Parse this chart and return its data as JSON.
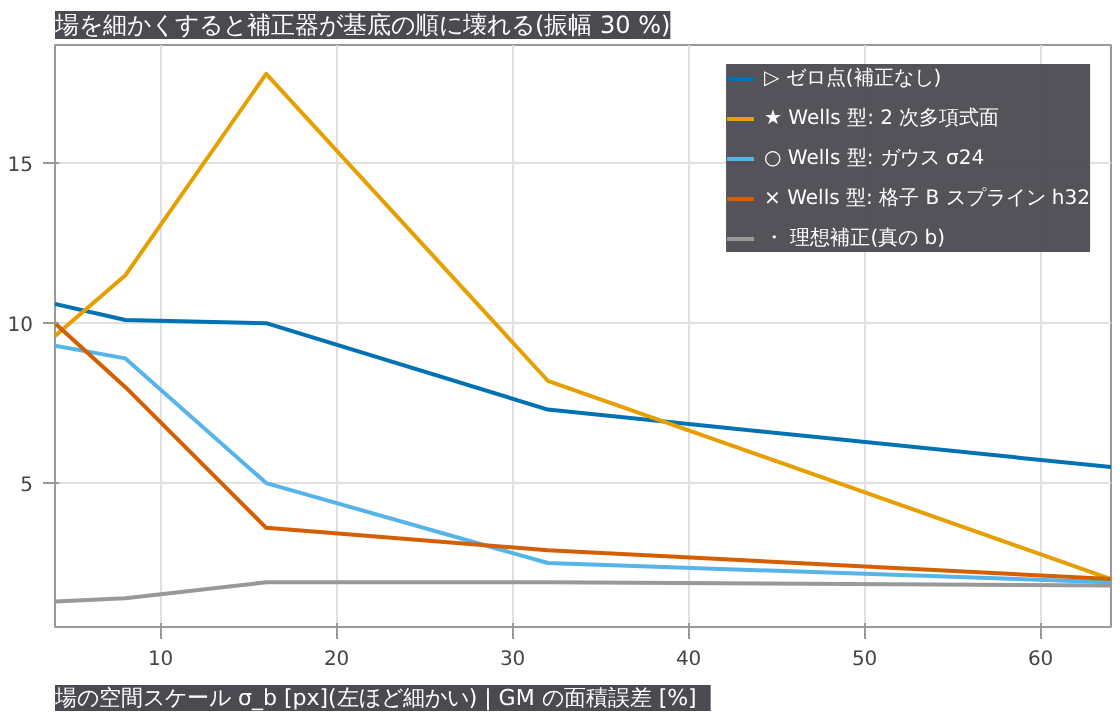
{
  "chart_data": {
    "type": "line",
    "title": "場を細かくすると補正器が基底の順に壊れる(振幅 30 %)",
    "xlabel": "場の空間スケール σ_b [px](左ほど細かい)  |  GM の面積誤差 [%]",
    "x": [
      4,
      8,
      16,
      32,
      64
    ],
    "series": [
      {
        "name": "▷ ゼロ点(補正なし)",
        "color": "#0072b2",
        "values": [
          10.6,
          10.1,
          10.0,
          7.3,
          5.5
        ]
      },
      {
        "name": "★ Wells 型: 2 次多項式面",
        "color": "#e69f00",
        "values": [
          9.6,
          11.5,
          17.8,
          8.2,
          2.0
        ]
      },
      {
        "name": "○ Wells 型: ガウス σ24",
        "color": "#56b4e9",
        "values": [
          9.3,
          8.9,
          5.0,
          2.5,
          1.9
        ]
      },
      {
        "name": "× Wells 型: 格子 B スプライン h32",
        "color": "#d55e00",
        "values": [
          10.0,
          8.0,
          3.6,
          2.9,
          2.0
        ]
      },
      {
        "name": "・ 理想補正(真の b)",
        "color": "#999999",
        "values": [
          1.3,
          1.4,
          1.9,
          1.9,
          1.8
        ]
      }
    ],
    "xlim": [
      4,
      64
    ],
    "xticks": [
      10,
      20,
      30,
      40,
      50,
      60
    ],
    "ylim": [
      0.5,
      18.7
    ],
    "yticks": [
      5,
      10,
      15
    ],
    "grid": true,
    "legend": "top right",
    "marker": "none",
    "line_style": "solid"
  }
}
